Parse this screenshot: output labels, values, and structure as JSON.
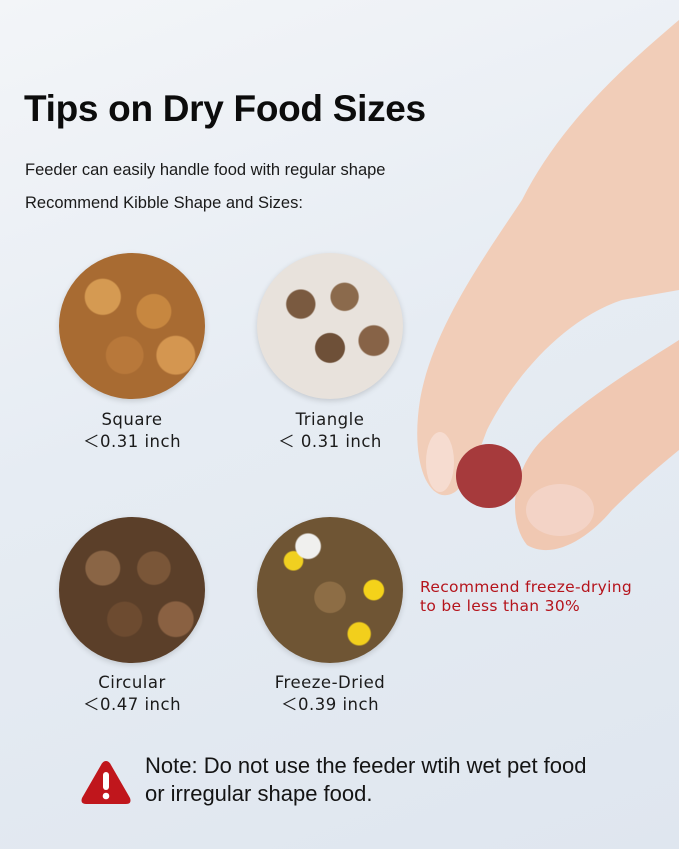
{
  "title": "Tips on Dry Food Sizes",
  "subtitle1": "Feeder can easily handle food with regular shape",
  "subtitle2": "Recommend Kibble Shape and Sizes:",
  "kibbles": [
    {
      "name": "Square",
      "size": "＜0.31 inch"
    },
    {
      "name": "Triangle",
      "size": "＜ 0.31 inch"
    },
    {
      "name": "Circular",
      "size": "＜0.47 inch"
    },
    {
      "name": "Freeze-Dried",
      "size": "＜0.39 inch"
    }
  ],
  "recommend": {
    "line1": "Recommend freeze-drying",
    "line2": "to be less than 30%",
    "color": "#b5141c"
  },
  "note": {
    "line1": "Note: Do not use the feeder wtih wet pet food",
    "line2": "or irregular shape food.",
    "icon": "warning-triangle-icon",
    "icon_color": "#c0161c"
  }
}
